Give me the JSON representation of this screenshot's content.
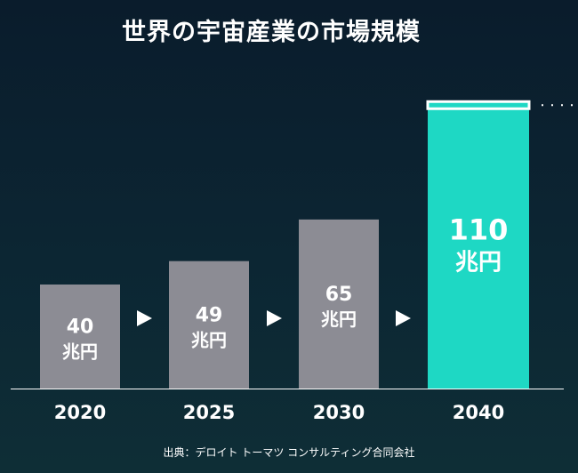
{
  "title": "世界の宇宙産業の市場規模",
  "source": "出典：デロイト トーマツ コンサルティング合同会社",
  "colors": {
    "bar_default": "#8c8c94",
    "bar_highlight": "#1ed8c4",
    "text": "#ffffff",
    "arrow": "#ffffff"
  },
  "chart_data": {
    "type": "bar",
    "title": "世界の宇宙産業の市場規模",
    "categories": [
      "2020",
      "2025",
      "2030",
      "2040"
    ],
    "values": [
      40,
      49,
      65,
      110
    ],
    "value_unit": "兆円",
    "value_labels": [
      "40",
      "49",
      "65",
      "110"
    ],
    "highlight_index": 3,
    "ylim": [
      0,
      120
    ],
    "grid": false,
    "legend": "none",
    "annotations": [
      "arrow 2020→2025",
      "arrow 2025→2030",
      "arrow 2030→2040",
      "dotted line right of 2040 bar top"
    ]
  }
}
